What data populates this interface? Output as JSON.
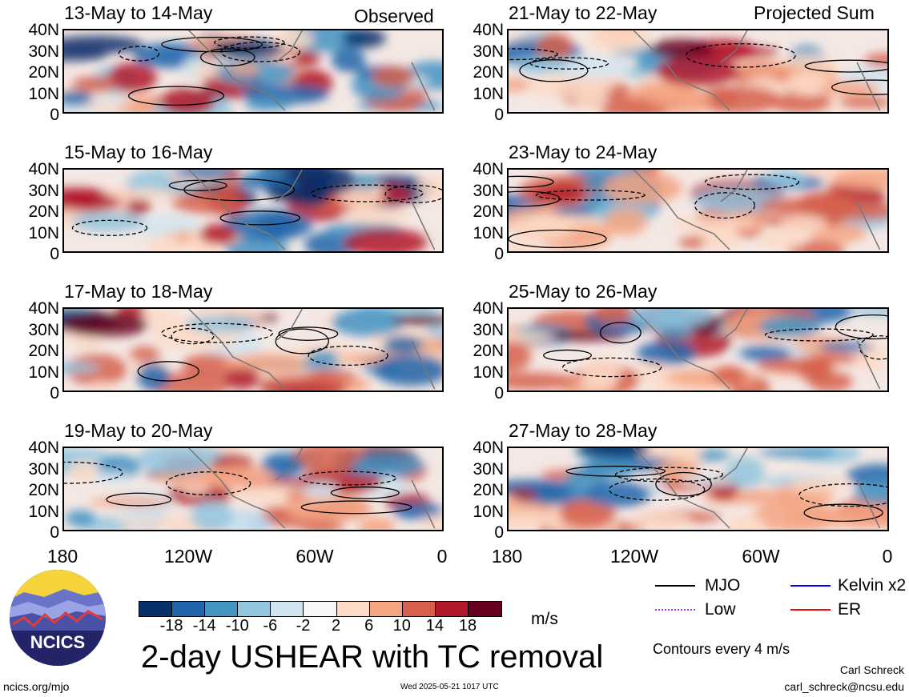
{
  "header": {
    "left_tag": "Observed",
    "right_tag": "Projected Sum"
  },
  "panels": {
    "left": [
      {
        "title": "13-May to 14-May"
      },
      {
        "title": "15-May to 16-May"
      },
      {
        "title": "17-May to 18-May"
      },
      {
        "title": "19-May to 20-May"
      }
    ],
    "right": [
      {
        "title": "21-May to 22-May"
      },
      {
        "title": "23-May to 24-May"
      },
      {
        "title": "25-May to 26-May"
      },
      {
        "title": "27-May to 28-May"
      }
    ]
  },
  "axes": {
    "y_ticks": [
      "40N",
      "30N",
      "20N",
      "10N",
      "0"
    ],
    "x_ticks": [
      "180",
      "120W",
      "60W",
      "0"
    ]
  },
  "colorbar": {
    "labels": [
      "-18",
      "-14",
      "-10",
      "-6",
      "-2",
      "2",
      "6",
      "10",
      "14",
      "18"
    ],
    "colors": [
      "#08306b",
      "#2166ac",
      "#4393c3",
      "#92c5de",
      "#d1e5f0",
      "#f7f7f7",
      "#fddbc7",
      "#f4a582",
      "#d6604d",
      "#b2182b",
      "#67001f"
    ],
    "units": "m/s"
  },
  "title": "2-day USHEAR with TC removal",
  "legend": {
    "items": [
      {
        "label": "MJO",
        "color": "#000000"
      },
      {
        "label": "Kelvin x2",
        "color": "#0000ff"
      },
      {
        "label": "Low",
        "color": "#9933ff"
      },
      {
        "label": "ER",
        "color": "#ff0000"
      }
    ],
    "note": "Contours every 4 m/s"
  },
  "logo": {
    "text": "NCICS"
  },
  "footer": {
    "url": "ncics.org/mjo",
    "timestamp": "Wed 2025-05-21 1017 UTC",
    "author": "Carl Schreck",
    "email": "carl_schreck@ncsu.edu"
  }
}
